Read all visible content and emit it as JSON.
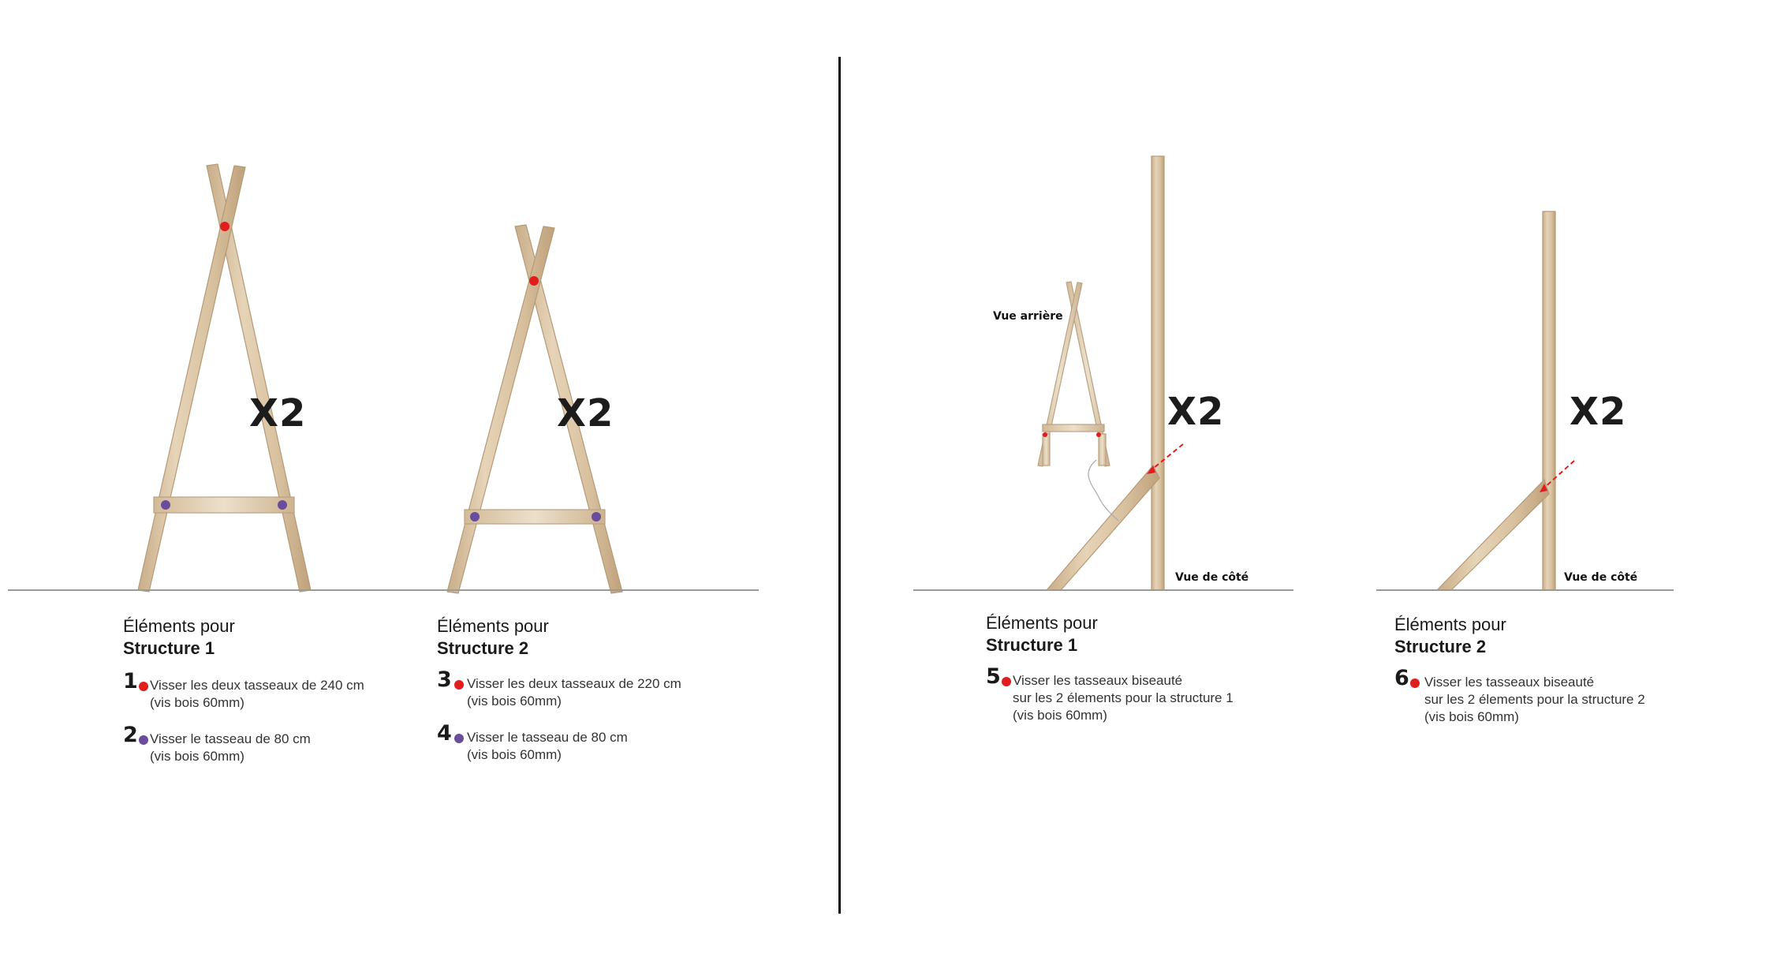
{
  "colors": {
    "screw_red": "#e11d1d",
    "screw_purple": "#6a4c9c",
    "wood": "#d9c3a3",
    "divider": "#111111",
    "ground": "#9a9a9a"
  },
  "panels": [
    {
      "multiplier": "X2"
    },
    {
      "multiplier": "X2"
    },
    {
      "multiplier": "X2",
      "view_back": "Vue arrière",
      "view_side": "Vue de côté"
    },
    {
      "multiplier": "X2",
      "view_side": "Vue de côté"
    }
  ],
  "sections": [
    {
      "heading": "Éléments pour",
      "structure": "Structure 1",
      "steps": [
        {
          "number": "1",
          "dot": "red",
          "text": "Visser les deux tasseaux de 240 cm\n(vis bois 60mm)"
        },
        {
          "number": "2",
          "dot": "purple",
          "text": "Visser le tasseau de 80 cm\n(vis bois 60mm)"
        }
      ]
    },
    {
      "heading": "Éléments pour",
      "structure": "Structure 2",
      "steps": [
        {
          "number": "3",
          "dot": "red",
          "text": "Visser les deux tasseaux de 220 cm\n(vis bois 60mm)"
        },
        {
          "number": "4",
          "dot": "purple",
          "text": "Visser le tasseau de 80 cm\n(vis bois 60mm)"
        }
      ]
    },
    {
      "heading": "Éléments pour",
      "structure": "Structure 1",
      "steps": [
        {
          "number": "5",
          "dot": "red",
          "text": "Visser les tasseaux biseauté\nsur les 2 élements pour la structure 1\n(vis bois 60mm)"
        }
      ]
    },
    {
      "heading": "Éléments pour",
      "structure": "Structure 2",
      "steps": [
        {
          "number": "6",
          "dot": "red",
          "text": "Visser les tasseaux biseauté\nsur les 2 élements pour la structure 2\n(vis bois 60mm)"
        }
      ]
    }
  ]
}
